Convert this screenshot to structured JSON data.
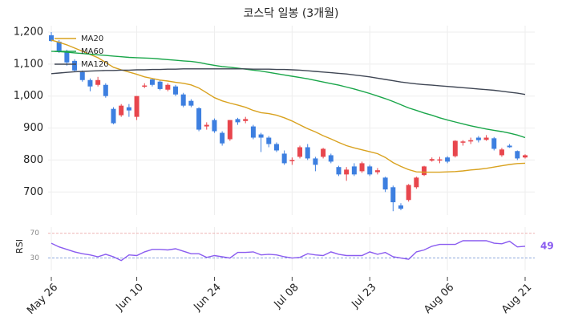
{
  "chart_data": [
    {
      "type": "candlestick",
      "title": "코스닥 일봉 (3개월)",
      "categories": [
        "May 26",
        null,
        null,
        null,
        null,
        null,
        null,
        null,
        null,
        null,
        null,
        "Jun 10",
        null,
        null,
        null,
        null,
        null,
        null,
        null,
        null,
        null,
        "Jun 24",
        null,
        null,
        null,
        null,
        null,
        null,
        null,
        null,
        null,
        "Jul 08",
        null,
        null,
        null,
        null,
        null,
        null,
        null,
        null,
        null,
        "Jul 23",
        null,
        null,
        null,
        null,
        null,
        null,
        null,
        null,
        null,
        "Aug 06",
        null,
        null,
        null,
        null,
        null,
        null,
        null,
        null,
        null,
        "Aug 21"
      ],
      "open": [
        1190,
        1170,
        1140,
        1110,
        1075,
        1050,
        1035,
        1035,
        960,
        940,
        965,
        935,
        1030,
        1052,
        1045,
        1020,
        1030,
        1005,
        985,
        962,
        905,
        925,
        885,
        865,
        928,
        922,
        905,
        880,
        870,
        850,
        820,
        798,
        810,
        840,
        805,
        810,
        815,
        778,
        755,
        780,
        765,
        780,
        762,
        745,
        715,
        658,
        675,
        715,
        753,
        798,
        800,
        808,
        812,
        855,
        858,
        870,
        863,
        868,
        815,
        845,
        828,
        808
      ],
      "high": [
        1200,
        1175,
        1145,
        1115,
        1080,
        1055,
        1060,
        1040,
        965,
        975,
        975,
        1000,
        1040,
        1055,
        1050,
        1040,
        1035,
        1010,
        990,
        965,
        918,
        930,
        890,
        925,
        932,
        935,
        910,
        885,
        875,
        855,
        830,
        808,
        845,
        850,
        810,
        838,
        820,
        782,
        778,
        790,
        795,
        785,
        775,
        748,
        720,
        665,
        725,
        748,
        782,
        808,
        810,
        812,
        862,
        862,
        870,
        875,
        878,
        872,
        838,
        850,
        830,
        818
      ],
      "low": [
        1170,
        1135,
        1095,
        1075,
        1045,
        1015,
        1030,
        995,
        912,
        935,
        935,
        925,
        1025,
        1030,
        1018,
        1015,
        1000,
        965,
        965,
        890,
        895,
        885,
        845,
        860,
        910,
        915,
        865,
        825,
        840,
        825,
        785,
        785,
        805,
        800,
        765,
        805,
        790,
        750,
        735,
        750,
        760,
        750,
        755,
        700,
        640,
        643,
        670,
        710,
        750,
        795,
        790,
        790,
        808,
        845,
        850,
        855,
        860,
        830,
        810,
        838,
        800,
        805
      ],
      "close": [
        1172,
        1140,
        1105,
        1080,
        1050,
        1030,
        1050,
        1000,
        915,
        970,
        955,
        1000,
        1033,
        1035,
        1022,
        1035,
        1005,
        970,
        970,
        895,
        910,
        890,
        852,
        925,
        918,
        928,
        870,
        870,
        850,
        830,
        790,
        800,
        840,
        805,
        785,
        835,
        795,
        755,
        770,
        755,
        790,
        755,
        768,
        708,
        668,
        648,
        722,
        745,
        780,
        803,
        802,
        795,
        860,
        858,
        862,
        862,
        870,
        835,
        833,
        840,
        805,
        815
      ],
      "up_color": "#e8464d",
      "down_color": "#3d7fe0",
      "series": [
        {
          "name": "MA20",
          "color": "#d9a21f",
          "values": [
            1175,
            1168,
            1160,
            1150,
            1140,
            1130,
            1120,
            1105,
            1090,
            1082,
            1075,
            1068,
            1060,
            1055,
            1050,
            1047,
            1043,
            1040,
            1035,
            1025,
            1010,
            995,
            985,
            978,
            972,
            965,
            955,
            948,
            945,
            940,
            932,
            922,
            910,
            898,
            888,
            876,
            866,
            855,
            845,
            838,
            832,
            826,
            820,
            808,
            792,
            780,
            770,
            763,
            762,
            762,
            762,
            763,
            764,
            766,
            769,
            771,
            774,
            778,
            782,
            786,
            789,
            790
          ]
        },
        {
          "name": "MA60",
          "color": "#1aa64a",
          "values": [
            1140,
            1139,
            1137,
            1135,
            1133,
            1131,
            1129,
            1127,
            1125,
            1123,
            1121,
            1120,
            1119,
            1118,
            1116,
            1114,
            1112,
            1110,
            1108,
            1105,
            1100,
            1096,
            1092,
            1090,
            1087,
            1084,
            1081,
            1078,
            1074,
            1070,
            1066,
            1062,
            1058,
            1054,
            1049,
            1044,
            1039,
            1034,
            1028,
            1022,
            1015,
            1008,
            1000,
            992,
            983,
            973,
            963,
            955,
            947,
            940,
            932,
            925,
            919,
            913,
            907,
            902,
            897,
            893,
            889,
            884,
            878,
            870
          ]
        },
        {
          "name": "MA120",
          "color": "#3f4654",
          "values": [
            1070,
            1072,
            1074,
            1076,
            1077,
            1078,
            1079,
            1080,
            1080,
            1081,
            1081,
            1082,
            1082,
            1083,
            1083,
            1084,
            1084,
            1085,
            1085,
            1085,
            1085,
            1085,
            1085,
            1085,
            1085,
            1085,
            1084,
            1084,
            1084,
            1083,
            1083,
            1082,
            1081,
            1079,
            1077,
            1075,
            1073,
            1071,
            1069,
            1066,
            1063,
            1060,
            1056,
            1052,
            1048,
            1044,
            1041,
            1038,
            1036,
            1034,
            1032,
            1030,
            1028,
            1026,
            1024,
            1022,
            1020,
            1018,
            1015,
            1012,
            1009,
            1005
          ]
        }
      ],
      "ylim": [
        628,
        1220
      ],
      "yticks": [
        700,
        800,
        900,
        {
          "value": 1000,
          "label": "1,000"
        },
        {
          "value": 1100,
          "label": "1,100"
        },
        {
          "value": 1200,
          "label": "1,200"
        }
      ],
      "grid": true,
      "legend": "upper-left"
    },
    {
      "type": "line",
      "ylabel": "RSI",
      "series": [
        {
          "name": "RSI",
          "color": "#8a5cf0",
          "values": [
            54,
            48,
            44,
            40,
            37,
            35,
            32,
            36,
            32,
            26,
            35,
            34,
            40,
            44,
            44,
            43,
            45,
            41,
            37,
            37,
            31,
            34,
            32,
            30,
            39,
            39,
            40,
            35,
            36,
            35,
            32,
            30,
            31,
            37,
            35,
            34,
            40,
            36,
            34,
            34,
            34,
            40,
            36,
            39,
            32,
            30,
            28,
            40,
            43,
            49,
            52,
            52,
            52,
            58,
            58,
            58,
            58,
            54,
            53,
            57,
            48,
            49
          ]
        }
      ],
      "ylim": [
        10,
        80
      ],
      "yticks": [
        30,
        70
      ],
      "reference_colors": [
        "#7f9fd8",
        "#e89a9a"
      ]
    }
  ]
}
